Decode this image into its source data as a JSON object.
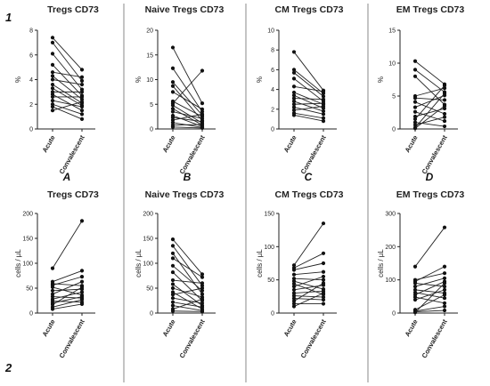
{
  "figure": {
    "row_labels": [
      "1",
      "2"
    ]
  },
  "chart_data": [
    {
      "type": "line",
      "title": "Tregs CD73",
      "ylabel": "%",
      "ylim": [
        0,
        8
      ],
      "yticks": [
        "0",
        "2",
        "4",
        "6",
        "8"
      ],
      "categories": [
        "Acute",
        "Convalescent"
      ],
      "panel_letter": "A",
      "series": [
        {
          "values": [
            7.4,
            4.8
          ]
        },
        {
          "values": [
            7.0,
            3.9
          ]
        },
        {
          "values": [
            6.1,
            3.2
          ]
        },
        {
          "values": [
            5.2,
            2.7
          ]
        },
        {
          "values": [
            4.6,
            4.2
          ]
        },
        {
          "values": [
            4.3,
            2.4
          ]
        },
        {
          "values": [
            4.0,
            3.6
          ]
        },
        {
          "values": [
            3.6,
            2.1
          ]
        },
        {
          "values": [
            3.3,
            1.9
          ]
        },
        {
          "values": [
            3.0,
            3.0
          ]
        },
        {
          "values": [
            2.8,
            1.5
          ]
        },
        {
          "values": [
            2.6,
            2.6
          ]
        },
        {
          "values": [
            2.3,
            1.8
          ]
        },
        {
          "values": [
            2.0,
            1.2
          ]
        },
        {
          "values": [
            1.8,
            0.8
          ]
        },
        {
          "values": [
            1.5,
            2.2
          ]
        }
      ]
    },
    {
      "type": "line",
      "title": "Naive Tregs CD73",
      "ylabel": "%",
      "ylim": [
        0,
        20
      ],
      "yticks": [
        "0",
        "5",
        "10",
        "15",
        "20"
      ],
      "categories": [
        "Acute",
        "Convalescent"
      ],
      "panel_letter": "B",
      "series": [
        {
          "values": [
            16.5,
            5.2
          ]
        },
        {
          "values": [
            12.3,
            3.5
          ]
        },
        {
          "values": [
            9.5,
            2.8
          ]
        },
        {
          "values": [
            8.7,
            1.7
          ]
        },
        {
          "values": [
            7.5,
            4.0
          ]
        },
        {
          "values": [
            5.6,
            2.5
          ]
        },
        {
          "values": [
            5.2,
            11.8
          ]
        },
        {
          "values": [
            4.8,
            1.2
          ]
        },
        {
          "values": [
            4.1,
            0.8
          ]
        },
        {
          "values": [
            3.5,
            2.1
          ]
        },
        {
          "values": [
            2.7,
            0.5
          ]
        },
        {
          "values": [
            2.3,
            1.5
          ]
        },
        {
          "values": [
            1.8,
            3.0
          ]
        },
        {
          "values": [
            1.3,
            0.3
          ]
        },
        {
          "values": [
            0.8,
            0.9
          ]
        },
        {
          "values": [
            0.4,
            0.2
          ]
        }
      ]
    },
    {
      "type": "line",
      "title": "CM Tregs CD73",
      "ylabel": "%",
      "ylim": [
        0,
        10
      ],
      "yticks": [
        "0",
        "2",
        "4",
        "6",
        "8",
        "10"
      ],
      "categories": [
        "Acute",
        "Convalescent"
      ],
      "panel_letter": "C",
      "series": [
        {
          "values": [
            7.8,
            3.9
          ]
        },
        {
          "values": [
            6.0,
            3.6
          ]
        },
        {
          "values": [
            5.7,
            3.3
          ]
        },
        {
          "values": [
            5.1,
            2.8
          ]
        },
        {
          "values": [
            4.3,
            3.8
          ]
        },
        {
          "values": [
            3.7,
            2.5
          ]
        },
        {
          "values": [
            3.4,
            2.1
          ]
        },
        {
          "values": [
            3.1,
            3.0
          ]
        },
        {
          "values": [
            2.8,
            1.8
          ]
        },
        {
          "values": [
            2.5,
            2.6
          ]
        },
        {
          "values": [
            2.2,
            1.5
          ]
        },
        {
          "values": [
            1.9,
            2.3
          ]
        },
        {
          "values": [
            1.6,
            1.1
          ]
        },
        {
          "values": [
            1.4,
            0.8
          ]
        }
      ]
    },
    {
      "type": "line",
      "title": "EM Tregs CD73",
      "ylabel": "%",
      "ylim": [
        0,
        15
      ],
      "yticks": [
        "0",
        "5",
        "10",
        "15"
      ],
      "categories": [
        "Acute",
        "Convalescent"
      ],
      "panel_letter": "D",
      "series": [
        {
          "values": [
            10.3,
            6.8
          ]
        },
        {
          "values": [
            9.0,
            5.6
          ]
        },
        {
          "values": [
            8.0,
            3.7
          ]
        },
        {
          "values": [
            5.0,
            6.2
          ]
        },
        {
          "values": [
            4.7,
            4.4
          ]
        },
        {
          "values": [
            4.1,
            2.3
          ]
        },
        {
          "values": [
            3.3,
            5.1
          ]
        },
        {
          "values": [
            2.6,
            1.2
          ]
        },
        {
          "values": [
            1.9,
            3.1
          ]
        },
        {
          "values": [
            1.5,
            6.6
          ]
        },
        {
          "values": [
            1.0,
            0.4
          ]
        },
        {
          "values": [
            0.6,
            1.8
          ]
        },
        {
          "values": [
            0.2,
            5.4
          ]
        },
        {
          "values": [
            0.1,
            3.5
          ]
        }
      ]
    },
    {
      "type": "line",
      "title": "Tregs CD73",
      "ylabel": "cells / µL",
      "ylim": [
        0,
        200
      ],
      "yticks": [
        "0",
        "50",
        "100",
        "150",
        "200"
      ],
      "categories": [
        "Acute",
        "Convalescent"
      ],
      "series": [
        {
          "values": [
            90,
            185
          ]
        },
        {
          "values": [
            63,
            85
          ]
        },
        {
          "values": [
            59,
            55
          ]
        },
        {
          "values": [
            56,
            73
          ]
        },
        {
          "values": [
            52,
            36
          ]
        },
        {
          "values": [
            45,
            48
          ]
        },
        {
          "values": [
            38,
            63
          ]
        },
        {
          "values": [
            33,
            30
          ]
        },
        {
          "values": [
            28,
            42
          ]
        },
        {
          "values": [
            24,
            22
          ]
        },
        {
          "values": [
            20,
            33
          ]
        },
        {
          "values": [
            17,
            52
          ]
        },
        {
          "values": [
            12,
            27
          ]
        },
        {
          "values": [
            8,
            18
          ]
        }
      ]
    },
    {
      "type": "line",
      "title": "Naive Tregs CD73",
      "ylabel": "cells / µL",
      "ylim": [
        0,
        200
      ],
      "yticks": [
        "0",
        "50",
        "100",
        "150",
        "200"
      ],
      "categories": [
        "Acute",
        "Convalescent"
      ],
      "series": [
        {
          "values": [
            148,
            78
          ]
        },
        {
          "values": [
            135,
            55
          ]
        },
        {
          "values": [
            120,
            38
          ]
        },
        {
          "values": [
            110,
            72
          ]
        },
        {
          "values": [
            95,
            45
          ]
        },
        {
          "values": [
            82,
            25
          ]
        },
        {
          "values": [
            66,
            60
          ]
        },
        {
          "values": [
            58,
            15
          ]
        },
        {
          "values": [
            50,
            32
          ]
        },
        {
          "values": [
            42,
            8
          ]
        },
        {
          "values": [
            37,
            50
          ]
        },
        {
          "values": [
            30,
            20
          ]
        },
        {
          "values": [
            22,
            12
          ]
        },
        {
          "values": [
            15,
            5
          ]
        },
        {
          "values": [
            8,
            28
          ]
        },
        {
          "values": [
            4,
            3
          ]
        }
      ]
    },
    {
      "type": "line",
      "title": "CM Tregs CD73",
      "ylabel": "cells / µL",
      "ylim": [
        0,
        150
      ],
      "yticks": [
        "0",
        "50",
        "100",
        "150"
      ],
      "categories": [
        "Acute",
        "Convalescent"
      ],
      "series": [
        {
          "values": [
            72,
            135
          ]
        },
        {
          "values": [
            68,
            90
          ]
        },
        {
          "values": [
            65,
            75
          ]
        },
        {
          "values": [
            58,
            62
          ]
        },
        {
          "values": [
            52,
            50
          ]
        },
        {
          "values": [
            48,
            36
          ]
        },
        {
          "values": [
            44,
            28
          ]
        },
        {
          "values": [
            40,
            55
          ]
        },
        {
          "values": [
            35,
            42
          ]
        },
        {
          "values": [
            30,
            33
          ]
        },
        {
          "values": [
            26,
            24
          ]
        },
        {
          "values": [
            22,
            20
          ]
        },
        {
          "values": [
            18,
            45
          ]
        },
        {
          "values": [
            14,
            14
          ]
        },
        {
          "values": [
            10,
            30
          ]
        }
      ]
    },
    {
      "type": "line",
      "title": "EM Tregs CD73",
      "ylabel": "cells / µL",
      "ylim": [
        0,
        300
      ],
      "yticks": [
        "0",
        "100",
        "200",
        "300"
      ],
      "categories": [
        "Acute",
        "Convalescent"
      ],
      "series": [
        {
          "values": [
            140,
            258
          ]
        },
        {
          "values": [
            100,
            120
          ]
        },
        {
          "values": [
            95,
            140
          ]
        },
        {
          "values": [
            90,
            80
          ]
        },
        {
          "values": [
            80,
            105
          ]
        },
        {
          "values": [
            70,
            60
          ]
        },
        {
          "values": [
            62,
            45
          ]
        },
        {
          "values": [
            55,
            95
          ]
        },
        {
          "values": [
            48,
            30
          ]
        },
        {
          "values": [
            40,
            70
          ]
        },
        {
          "values": [
            10,
            55
          ]
        },
        {
          "values": [
            6,
            20
          ]
        },
        {
          "values": [
            4,
            8
          ]
        },
        {
          "values": [
            2,
            90
          ]
        }
      ]
    }
  ]
}
